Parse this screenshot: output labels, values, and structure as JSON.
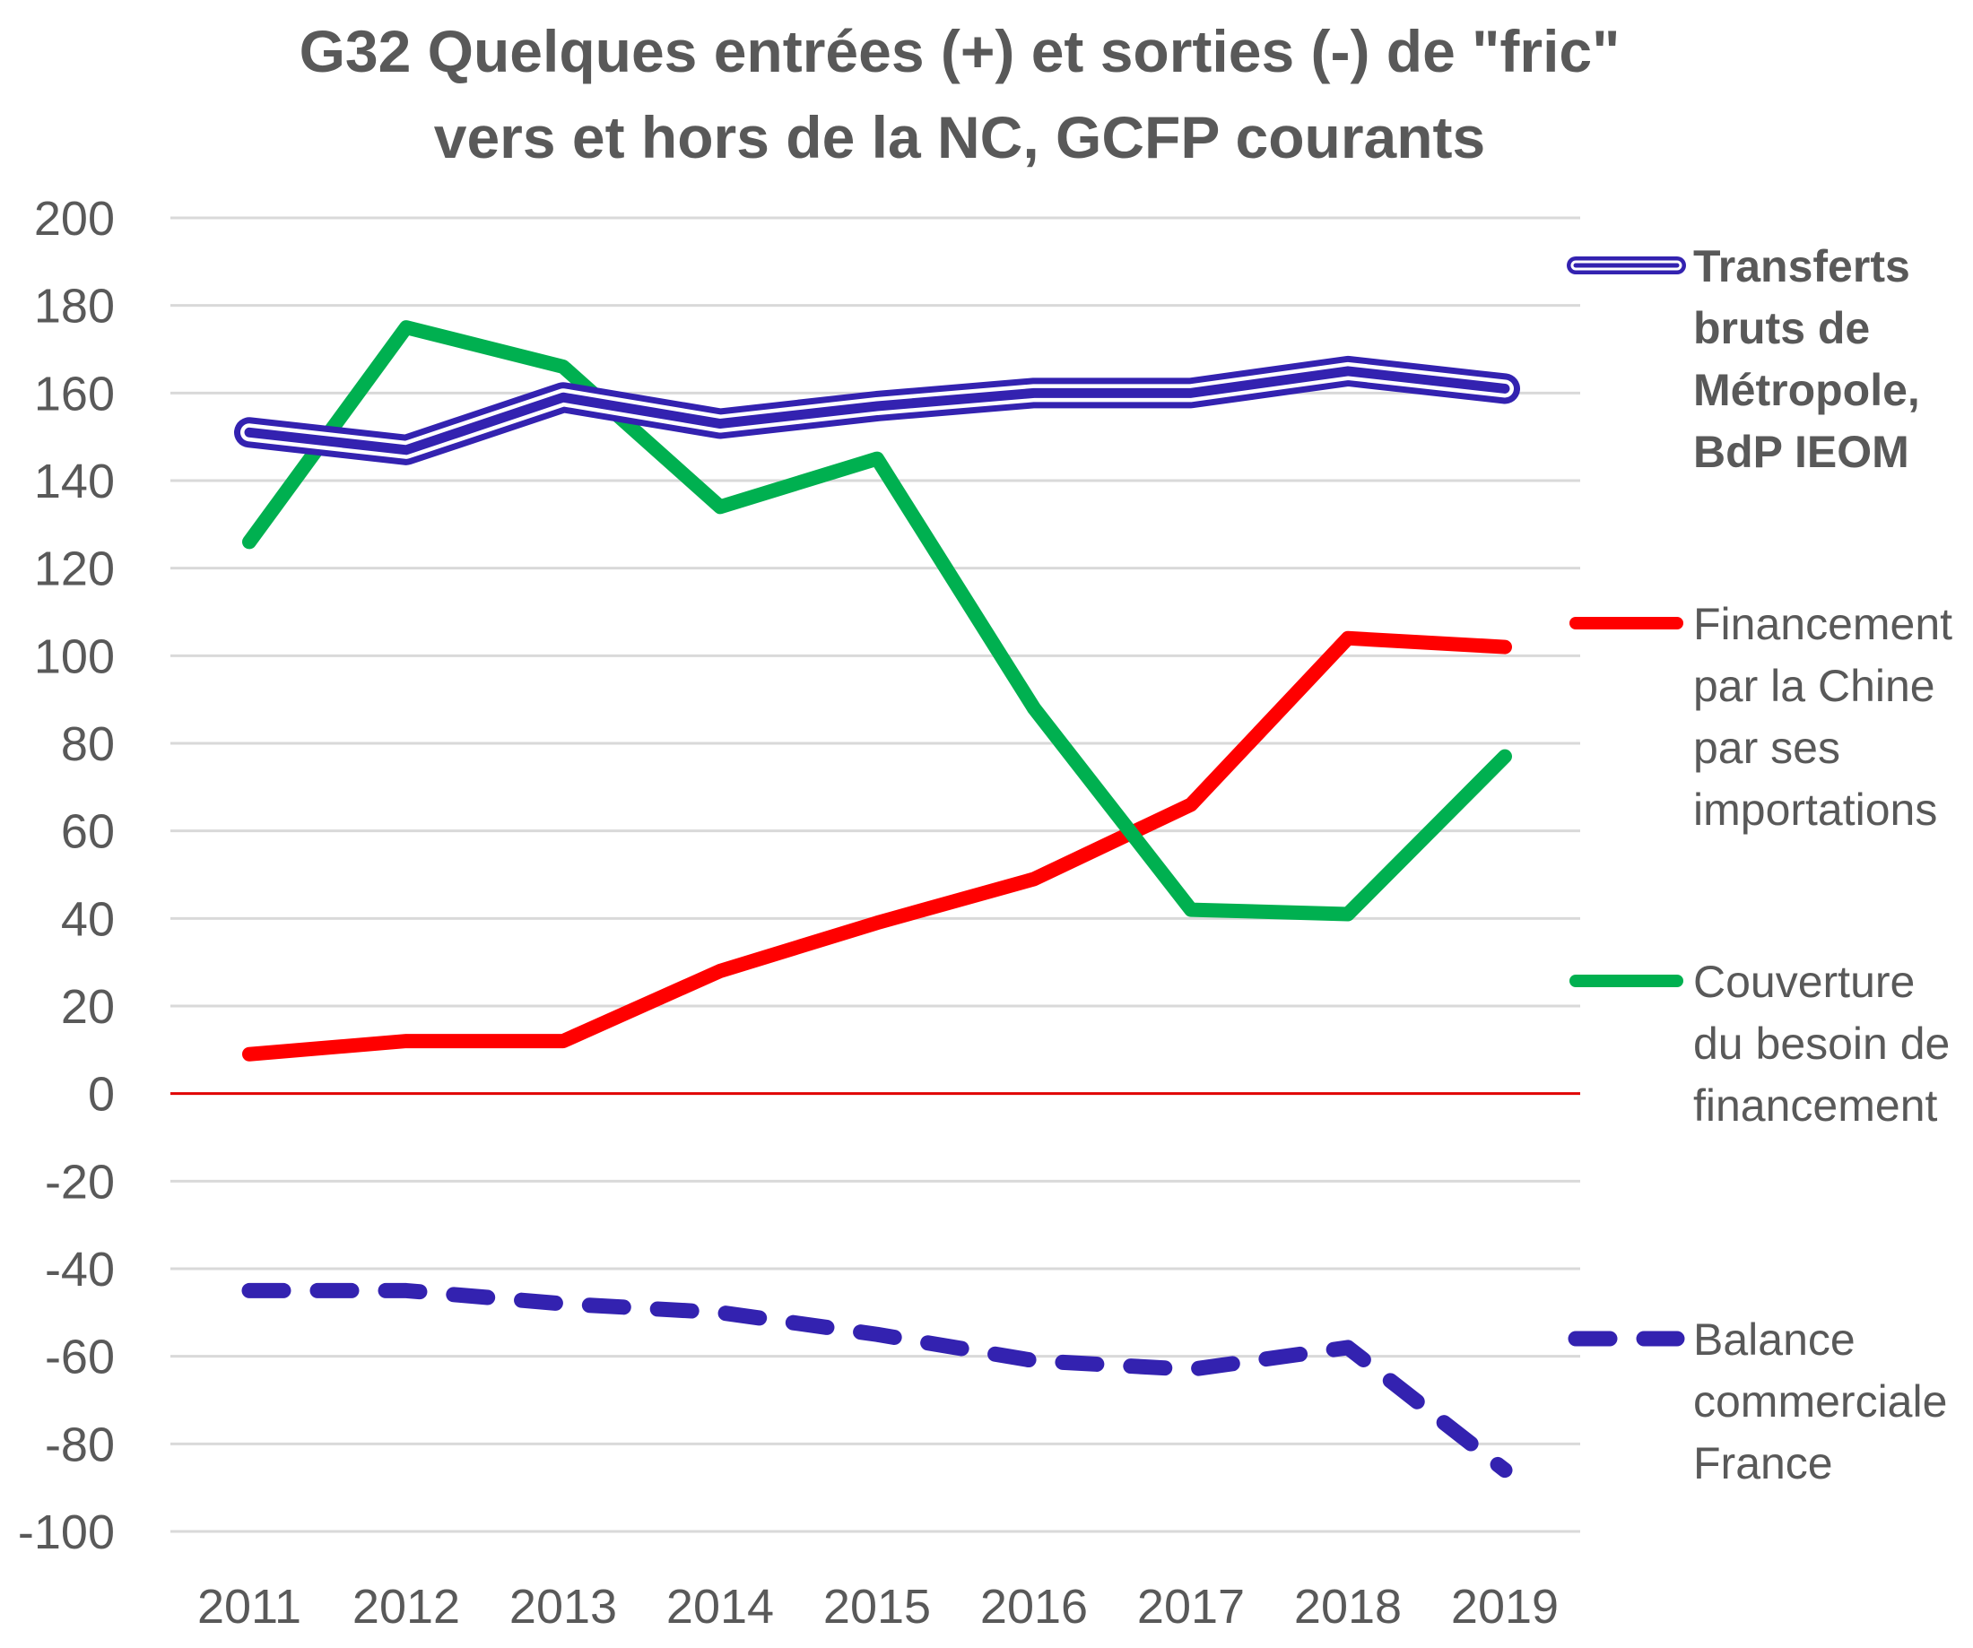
{
  "chart_data": {
    "type": "line",
    "title_lines": [
      "G32 Quelques  entrées (+) et sorties (-) de \"fric\"",
      "vers et hors de la NC, GCFP courants"
    ],
    "categories": [
      "2011",
      "2012",
      "2013",
      "2014",
      "2015",
      "2016",
      "2017",
      "2018",
      "2019"
    ],
    "ylim": [
      -100,
      200
    ],
    "yticks": [
      200,
      180,
      160,
      140,
      120,
      100,
      80,
      60,
      40,
      20,
      0,
      -20,
      -40,
      -60,
      -80,
      -100
    ],
    "ytick_labels": [
      "200",
      "180",
      "160",
      "140",
      "120",
      "100",
      "80",
      "60",
      "40",
      "20",
      "0",
      "-20",
      "-40",
      "-60",
      "-80",
      "-100"
    ],
    "grid": true,
    "zero_line_color": "#e00000",
    "legend_position": "right",
    "series": [
      {
        "key": "transferts",
        "name_lines": [
          "Transferts",
          "bruts de",
          "Métropole,",
          "BdP IEOM"
        ],
        "color": "#3322b0",
        "style": "double",
        "values": [
          151,
          147,
          159,
          153,
          157,
          160,
          160,
          165,
          161
        ]
      },
      {
        "key": "chine",
        "name_lines": [
          "Financement",
          "par la Chine",
          "par ses",
          "importations"
        ],
        "color": "#ff0000",
        "style": "solid",
        "values": [
          9,
          12,
          12,
          28,
          39,
          49,
          66,
          104,
          102
        ]
      },
      {
        "key": "couverture",
        "name_lines": [
          "Couverture",
          "du besoin de",
          "financement"
        ],
        "color": "#00b050",
        "style": "solid",
        "values": [
          126,
          175,
          166,
          134,
          145,
          88,
          42,
          41,
          77
        ]
      },
      {
        "key": "balance",
        "name_lines": [
          "Balance",
          "commerciale",
          "France"
        ],
        "color": "#3322b0",
        "style": "dashed",
        "values": [
          -45,
          -45,
          -48,
          -50,
          -55,
          -61,
          -63,
          -58,
          -86
        ]
      }
    ]
  }
}
